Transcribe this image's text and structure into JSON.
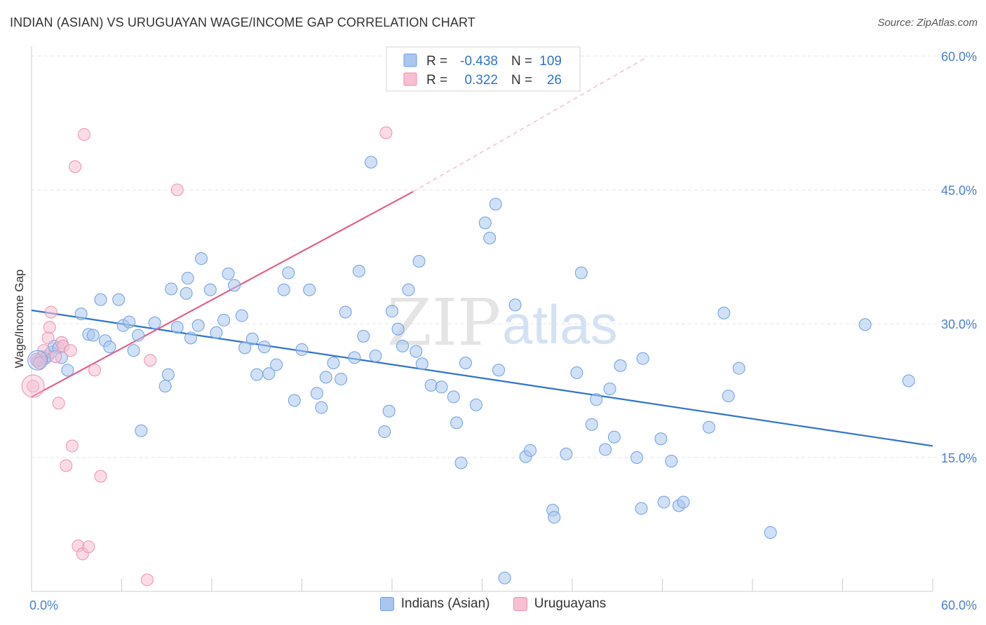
{
  "header": {
    "title": "INDIAN (ASIAN) VS URUGUAYAN WAGE/INCOME GAP CORRELATION CHART",
    "source": "Source: ZipAtlas.com"
  },
  "watermark": {
    "zip": "ZIP",
    "atlas": "atlas"
  },
  "legend": {
    "rows": [
      {
        "r_label": "R =",
        "r_value": "-0.438",
        "n_label": "N =",
        "n_value": "109"
      },
      {
        "r_label": "R =",
        "r_value": "0.322",
        "n_label": "N =",
        "n_value": "26"
      }
    ]
  },
  "colors": {
    "blue_fill": "#a9c6ef",
    "blue_stroke": "#6f9fe0",
    "blue_line": "#2f72cc",
    "pink_fill": "#f7bfd2",
    "pink_stroke": "#ec8fb0",
    "pink_line": "#e0608c",
    "tick_text": "#4a7fd0",
    "grid": "#e3e3e3"
  },
  "chart_data": {
    "type": "scatter",
    "title": "INDIAN (ASIAN) VS URUGUAYAN WAGE/INCOME GAP CORRELATION CHART",
    "xlabel": "",
    "ylabel": "Wage/Income Gap",
    "xlim": [
      0,
      60
    ],
    "ylim": [
      0,
      60
    ],
    "x_tick_labels": [
      "0.0%",
      "60.0%"
    ],
    "y_ticks": [
      15,
      30,
      45,
      60
    ],
    "y_tick_labels": [
      "15.0%",
      "30.0%",
      "45.0%",
      "60.0%"
    ],
    "grid": true,
    "legend_position": "bottom",
    "series": [
      {
        "name": "Indians (Asian)",
        "color": "#a9c6ef",
        "trend": {
          "x": [
            0,
            60
          ],
          "y": [
            31.5,
            16.3
          ],
          "style": "solid"
        },
        "points": [
          [
            0.4,
            25.8
          ],
          [
            0.7,
            26.3
          ],
          [
            1.1,
            26.4
          ],
          [
            1.3,
            26.8
          ],
          [
            1.5,
            27.5
          ],
          [
            1.8,
            27.3
          ],
          [
            2.0,
            26.2
          ],
          [
            2.4,
            24.8
          ],
          [
            3.3,
            31.1
          ],
          [
            3.8,
            28.8
          ],
          [
            4.1,
            28.7
          ],
          [
            4.6,
            32.7
          ],
          [
            4.9,
            28.1
          ],
          [
            5.2,
            27.4
          ],
          [
            5.8,
            32.7
          ],
          [
            6.1,
            29.8
          ],
          [
            6.5,
            30.2
          ],
          [
            6.8,
            27.0
          ],
          [
            7.1,
            28.7
          ],
          [
            7.3,
            18.0
          ],
          [
            8.2,
            30.1
          ],
          [
            8.9,
            23.0
          ],
          [
            9.1,
            24.3
          ],
          [
            9.3,
            33.9
          ],
          [
            9.7,
            29.6
          ],
          [
            10.3,
            33.4
          ],
          [
            10.4,
            35.1
          ],
          [
            10.6,
            28.4
          ],
          [
            11.1,
            29.8
          ],
          [
            11.3,
            37.3
          ],
          [
            11.9,
            33.8
          ],
          [
            12.3,
            29.0
          ],
          [
            12.8,
            30.4
          ],
          [
            13.1,
            35.6
          ],
          [
            13.5,
            34.3
          ],
          [
            14.0,
            30.9
          ],
          [
            14.2,
            27.3
          ],
          [
            14.7,
            28.3
          ],
          [
            15.0,
            24.3
          ],
          [
            15.5,
            27.4
          ],
          [
            15.8,
            24.4
          ],
          [
            16.3,
            25.4
          ],
          [
            16.8,
            33.8
          ],
          [
            17.1,
            35.7
          ],
          [
            17.5,
            21.4
          ],
          [
            18.0,
            27.1
          ],
          [
            18.5,
            33.8
          ],
          [
            19.0,
            22.2
          ],
          [
            19.3,
            20.6
          ],
          [
            19.6,
            24.0
          ],
          [
            20.1,
            25.6
          ],
          [
            20.6,
            23.8
          ],
          [
            20.9,
            31.3
          ],
          [
            21.5,
            26.2
          ],
          [
            21.8,
            35.9
          ],
          [
            22.1,
            28.6
          ],
          [
            22.6,
            48.1
          ],
          [
            22.9,
            26.4
          ],
          [
            23.5,
            17.9
          ],
          [
            23.8,
            20.2
          ],
          [
            24.0,
            31.4
          ],
          [
            24.4,
            29.4
          ],
          [
            24.7,
            27.5
          ],
          [
            25.1,
            33.8
          ],
          [
            25.6,
            26.9
          ],
          [
            25.8,
            37.0
          ],
          [
            26.0,
            25.5
          ],
          [
            26.6,
            23.1
          ],
          [
            27.3,
            22.9
          ],
          [
            28.1,
            21.8
          ],
          [
            28.3,
            18.9
          ],
          [
            28.6,
            14.4
          ],
          [
            28.9,
            25.6
          ],
          [
            29.6,
            20.9
          ],
          [
            30.2,
            41.3
          ],
          [
            30.5,
            39.6
          ],
          [
            30.9,
            43.4
          ],
          [
            31.1,
            24.8
          ],
          [
            31.5,
            1.5
          ],
          [
            32.2,
            32.1
          ],
          [
            32.9,
            15.1
          ],
          [
            33.2,
            15.8
          ],
          [
            34.7,
            9.1
          ],
          [
            34.8,
            8.3
          ],
          [
            35.6,
            15.4
          ],
          [
            36.3,
            24.5
          ],
          [
            36.6,
            35.7
          ],
          [
            37.3,
            18.7
          ],
          [
            37.6,
            21.5
          ],
          [
            38.2,
            15.9
          ],
          [
            38.5,
            22.7
          ],
          [
            38.8,
            17.3
          ],
          [
            39.2,
            25.3
          ],
          [
            40.3,
            15.0
          ],
          [
            40.6,
            9.3
          ],
          [
            40.7,
            26.1
          ],
          [
            41.9,
            17.1
          ],
          [
            42.1,
            10.0
          ],
          [
            42.6,
            14.6
          ],
          [
            43.1,
            9.6
          ],
          [
            43.4,
            10.0
          ],
          [
            45.1,
            18.4
          ],
          [
            46.1,
            31.2
          ],
          [
            46.4,
            21.9
          ],
          [
            47.1,
            25.0
          ],
          [
            49.2,
            6.6
          ],
          [
            55.5,
            29.9
          ],
          [
            58.4,
            23.6
          ],
          [
            0.9,
            26.1
          ]
        ]
      },
      {
        "name": "Uruguayans",
        "color": "#f7bfd2",
        "trend": {
          "x": [
            0,
            25.4
          ],
          "y": [
            21.8,
            44.8
          ],
          "style": "solid",
          "extended": {
            "x": [
              25.4,
              41.0
            ],
            "y": [
              44.8,
              59.9
            ]
          },
          "extended_style": "dashed"
        },
        "points": [
          [
            0.1,
            23.0
          ],
          [
            0.6,
            25.9
          ],
          [
            0.8,
            27.0
          ],
          [
            1.1,
            28.4
          ],
          [
            1.2,
            29.6
          ],
          [
            1.3,
            31.3
          ],
          [
            1.6,
            26.3
          ],
          [
            1.8,
            21.1
          ],
          [
            2.0,
            27.9
          ],
          [
            2.1,
            27.5
          ],
          [
            2.3,
            14.1
          ],
          [
            2.6,
            27.0
          ],
          [
            2.7,
            16.3
          ],
          [
            2.9,
            47.6
          ],
          [
            3.1,
            5.1
          ],
          [
            3.4,
            4.2
          ],
          [
            3.5,
            51.2
          ],
          [
            3.8,
            5.0
          ],
          [
            4.2,
            24.8
          ],
          [
            4.6,
            12.9
          ],
          [
            7.9,
            25.9
          ],
          [
            7.7,
            1.3
          ],
          [
            9.7,
            45.0
          ],
          [
            23.6,
            51.4
          ],
          [
            0.3,
            26.0
          ],
          [
            0.5,
            25.6
          ]
        ]
      }
    ]
  },
  "bottom_legend": [
    "Indians (Asian)",
    "Uruguayans"
  ]
}
